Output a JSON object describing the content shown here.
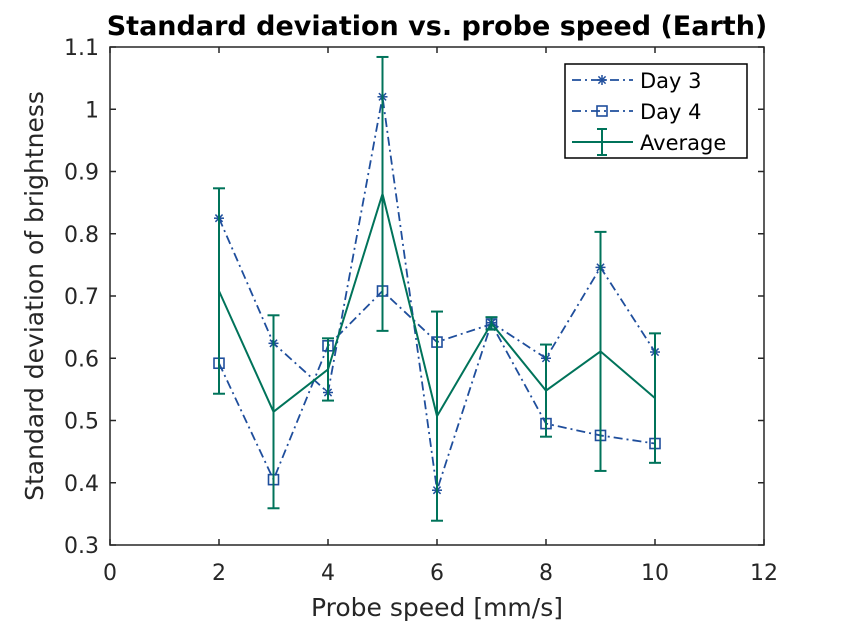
{
  "chart_data": {
    "type": "line",
    "title": "Standard deviation vs. probe speed (Earth)",
    "xlabel": "Probe speed [mm/s]",
    "ylabel": "Standard deviation of brightness",
    "xlim": [
      0,
      12
    ],
    "ylim": [
      0.3,
      1.1
    ],
    "xticks": [
      "0",
      "2",
      "4",
      "6",
      "8",
      "10",
      "12"
    ],
    "yticks": [
      "0.3",
      "0.4",
      "0.5",
      "0.6",
      "0.7",
      "0.8",
      "0.9",
      "1",
      "1.1"
    ],
    "grid": false,
    "legend_position": "top-right",
    "x": [
      2,
      3,
      4,
      5,
      6,
      7,
      8,
      9,
      10
    ],
    "series": [
      {
        "name": "Day 3",
        "color": "#1f4e9c",
        "line_style": "dash-dot",
        "marker": "asterisk",
        "values": [
          0.825,
          0.624,
          0.545,
          1.02,
          0.388,
          0.657,
          0.6,
          0.746,
          0.61
        ]
      },
      {
        "name": "Day 4",
        "color": "#1f4e9c",
        "line_style": "dash-dot",
        "marker": "square",
        "values": [
          0.592,
          0.405,
          0.62,
          0.708,
          0.626,
          0.655,
          0.495,
          0.476,
          0.463
        ]
      },
      {
        "name": "Average",
        "color": "#00735a",
        "line_style": "solid",
        "marker": "none",
        "values": [
          0.708,
          0.514,
          0.582,
          0.864,
          0.507,
          0.656,
          0.548,
          0.611,
          0.536
        ],
        "error": [
          0.165,
          0.155,
          0.05,
          0.22,
          0.168,
          0.01,
          0.074,
          0.192,
          0.104
        ]
      }
    ]
  }
}
